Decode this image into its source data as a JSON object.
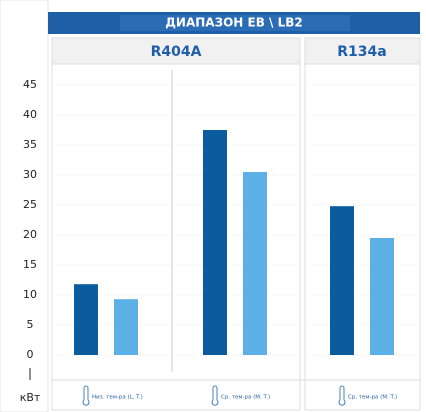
{
  "chart_data": {
    "type": "bar",
    "title": "ДИАПАЗОН EB \\ LB2",
    "y_unit": "кВт",
    "groups": [
      {
        "name": "R404A"
      },
      {
        "name": "R134a"
      }
    ],
    "categories": [
      "Низ. тем-ра (L. T.)",
      "Ср. тем-ра (M. T.)",
      "Ср. тем-ра (M. T.)"
    ],
    "series": [
      {
        "color": "#0b5c9e",
        "values": [
          11.8,
          37.5,
          24.8
        ]
      },
      {
        "color": "#5cb0e5",
        "values": [
          9.3,
          30.5,
          19.5
        ]
      }
    ],
    "ylim": [
      0,
      47.5
    ],
    "yticks": [
      0,
      5,
      10,
      15,
      20,
      25,
      30,
      35,
      40,
      45
    ],
    "grid": true
  }
}
